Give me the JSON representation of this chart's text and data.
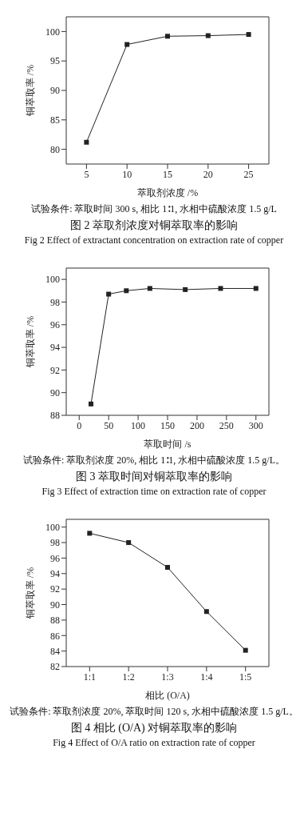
{
  "chart_data": [
    {
      "type": "line",
      "title": "图 2 萃取剂浓度对铜萃取率的影响",
      "subtitle": "Fig 2 Effect of extractant concentration on extraction rate of copper",
      "xlabel": "萃取剂浓度 /%",
      "ylabel": "铜萃取率 /%",
      "annotations": [
        "试验条件: 萃取时间 300 s, 相比 1∶1, 水相中硫酸浓度 1.5 g/L"
      ],
      "x": [
        5,
        10,
        15,
        20,
        25
      ],
      "series": [
        {
          "color": "#222222",
          "values": [
            81.2,
            97.8,
            99.2,
            99.3,
            99.5
          ]
        }
      ],
      "xlim": [
        2.5,
        27.5
      ],
      "xticks": [
        5,
        10,
        15,
        20,
        25
      ],
      "ylim": [
        77.5,
        102.5
      ],
      "yticks": [
        80,
        85,
        90,
        95,
        100
      ],
      "marker": "square",
      "line_style": "solid"
    },
    {
      "type": "line",
      "title": "图 3 萃取时间对铜萃取率的影响",
      "subtitle": "Fig 3 Effect of extraction time on extraction rate of copper",
      "xlabel": "萃取时间 /s",
      "ylabel": "铜萃取率 /%",
      "annotations": [
        "试验条件: 萃取剂浓度 20%, 相比 1∶1, 水相中硫酸浓度 1.5 g/L。"
      ],
      "x": [
        20,
        50,
        80,
        120,
        180,
        240,
        300
      ],
      "series": [
        {
          "color": "#222222",
          "values": [
            89.0,
            98.7,
            99.0,
            99.2,
            99.1,
            99.2,
            99.2
          ]
        }
      ],
      "xlim": [
        -22,
        322
      ],
      "xticks": [
        0,
        50,
        100,
        150,
        200,
        250,
        300
      ],
      "ylim": [
        88,
        101
      ],
      "yticks": [
        88,
        90,
        92,
        94,
        96,
        98,
        100
      ],
      "marker": "square",
      "line_style": "solid"
    },
    {
      "type": "line",
      "title": "图 4 相比 (O/A) 对铜萃取率的影响",
      "subtitle": "Fig 4 Effect of O/A ratio on extraction rate of copper",
      "xlabel": "相比 (O/A)",
      "ylabel": "铜萃取率 /%",
      "annotations": [
        "试验条件: 萃取剂浓度 20%, 萃取时间 120 s, 水相中硫酸浓度 1.5 g/L。"
      ],
      "categories": [
        "1:1",
        "1:2",
        "1:3",
        "1:4",
        "1:5"
      ],
      "series": [
        {
          "color": "#222222",
          "values": [
            99.2,
            98.0,
            94.8,
            89.1,
            84.1
          ]
        }
      ],
      "ylim": [
        82,
        101
      ],
      "yticks": [
        82,
        84,
        86,
        88,
        90,
        92,
        94,
        96,
        98,
        100
      ],
      "marker": "square",
      "line_style": "solid"
    }
  ]
}
